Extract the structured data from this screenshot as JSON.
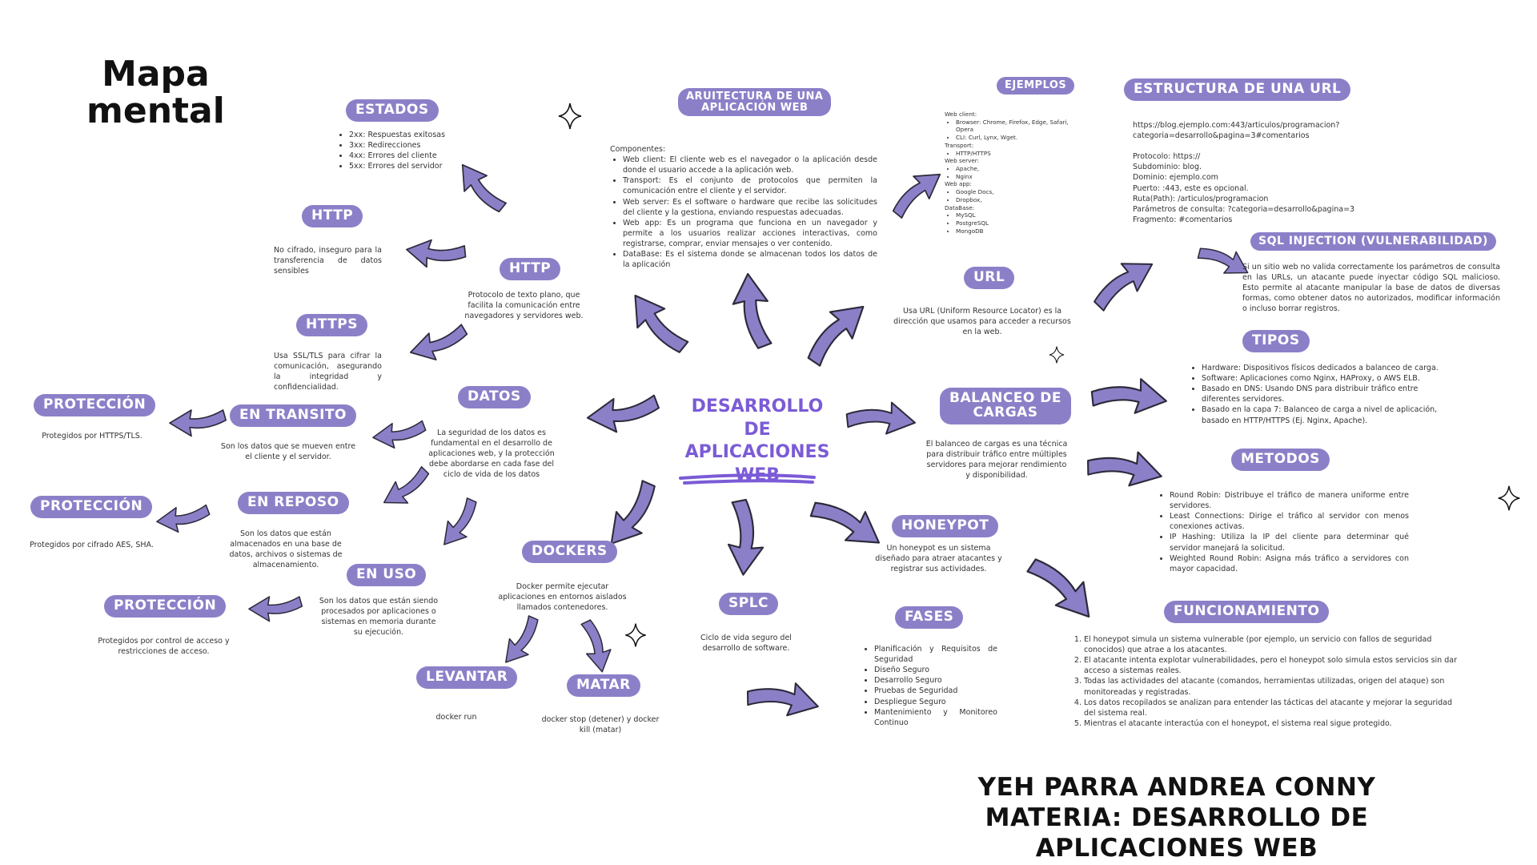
{
  "title": {
    "line1": "Mapa",
    "line2": "mental"
  },
  "center": {
    "line1": "DESARROLLO DE",
    "line2": "APLICACIONES",
    "line3": "WEB"
  },
  "estados": {
    "label": "ESTADOS",
    "items": [
      "2xx: Respuestas exitosas",
      "3xx: Redirecciones",
      "4xx: Errores del cliente",
      "5xx: Errores del servidor"
    ]
  },
  "http_left": {
    "label": "HTTP",
    "text": "No cifrado, inseguro para la transferencia de datos sensibles"
  },
  "http": {
    "label": "HTTP",
    "text": "Protocolo de texto plano, que facilita la comunicación entre navegadores y servidores web."
  },
  "https": {
    "label": "HTTPS",
    "text": "Usa SSL/TLS para cifrar la comunicación, asegurando la integridad y confidencialidad."
  },
  "datos": {
    "label": "DATOS",
    "text": "La seguridad de los datos es fundamental en el desarrollo de aplicaciones web, y la protección debe abordarse en cada fase del ciclo de vida de los datos"
  },
  "en_transito": {
    "label": "EN TRANSITO",
    "text": "Son los datos que se mueven entre el cliente y el servidor."
  },
  "prot1": {
    "label": "PROTECCIÓN",
    "text": "Protegidos por HTTPS/TLS."
  },
  "en_reposo": {
    "label": "EN REPOSO",
    "text": "Son los datos que están almacenados en una base de datos, archivos o sistemas de almacenamiento."
  },
  "prot2": {
    "label": "PROTECCIÓN",
    "text": "Protegidos por cifrado AES, SHA."
  },
  "en_uso": {
    "label": "EN USO",
    "text": "Son los datos que están siendo procesados por aplicaciones o sistemas en memoria durante su ejecución."
  },
  "prot3": {
    "label": "PROTECCIÓN",
    "text": "Protegidos por control de acceso y restricciones de acceso."
  },
  "dockers": {
    "label": "DOCKERS",
    "text": "Docker permite ejecutar aplicaciones en entornos aislados llamados contenedores."
  },
  "levantar": {
    "label": "LEVANTAR",
    "text": "docker run"
  },
  "matar": {
    "label": "MATAR",
    "text": "docker stop (detener) y docker kill (matar)"
  },
  "splc": {
    "label": "SPLC",
    "text": "Ciclo de vida seguro del desarrollo de software."
  },
  "arquitectura": {
    "label_line1": "ARUITECTURA DE UNA",
    "label_line2": "APLICACIÓN WEB",
    "intro": "Componentes:",
    "items": [
      "Web client: El cliente web es el navegador o la aplicación desde donde el usuario accede a la aplicación web.",
      "Transport: Es el conjunto de protocolos que permiten la comunicación entre el cliente y el servidor.",
      "Web server: Es el software o hardware que recibe las solicitudes del cliente y la gestiona, enviando respuestas adecuadas.",
      "Web app: Es un programa que funciona en un navegador y permite a los usuarios realizar acciones interactivas, como registrarse, comprar, enviar mensajes o ver contenido.",
      "DataBase: Es el sistema donde se almacenan todos los datos de la aplicación"
    ]
  },
  "ejemplos": {
    "label": "EJEMPLOS",
    "groups": [
      {
        "title": "Web client:",
        "items": [
          "Browser: Chrome, Firefox, Edge, Safari, Opera",
          "CLI: Curl, Lynx, Wget."
        ]
      },
      {
        "title": "Transport:",
        "items": [
          "HTTP/HTTPS"
        ]
      },
      {
        "title": "Web server:",
        "items": [
          "Apache,",
          "Nginx"
        ]
      },
      {
        "title": "Web app:",
        "items": [
          "Google Docs,",
          "Dropbox,"
        ]
      },
      {
        "title": "DataBase:",
        "items": [
          "MySQL",
          "PostgreSQL",
          "MongoDB"
        ]
      }
    ]
  },
  "url": {
    "label": "URL",
    "text": "Usa URL (Uniform Resource Locator) es la dirección que usamos para acceder a recursos en la web."
  },
  "estructura": {
    "label": "ESTRUCTURA DE UNA URL",
    "example_line1": "https://blog.ejemplo.com:443/articulos/programacion?",
    "example_line2": "categoria=desarrollo&pagina=3#comentarios",
    "parts": [
      "Protocolo: https://",
      "Subdominio: blog.",
      "Dominio: ejemplo.com",
      "Puerto: :443, este es opcional.",
      "Ruta(Path): /articulos/programacion",
      "Parámetros de consulta: ?categoria=desarrollo&pagina=3",
      "Fragmento: #comentarios"
    ]
  },
  "sql": {
    "label": "SQL INJECTION (VULNERABILIDAD)",
    "text": "Si un sitio web no valida correctamente los parámetros de consulta en las URLs, un atacante puede inyectar código SQL malicioso. Esto permite al atacante manipular la base de datos de diversas formas, como obtener datos no autorizados, modificar información o incluso borrar registros."
  },
  "balanceo": {
    "label_line1": "BALANCEO DE",
    "label_line2": "CARGAS",
    "text": "El balanceo de cargas es una técnica para distribuir tráfico entre múltiples servidores para mejorar rendimiento y disponibilidad."
  },
  "tipos": {
    "label": "TIPOS",
    "items": [
      "Hardware: Dispositivos físicos dedicados a balanceo de carga.",
      "Software: Aplicaciones como Nginx, HAProxy, o AWS ELB.",
      "Basado en DNS: Usando DNS para distribuir tráfico entre diferentes servidores.",
      "Basado en la capa 7: Balanceo de carga a nivel de aplicación, basado en HTTP/HTTPS (Ej. Nginx, Apache)."
    ]
  },
  "metodos": {
    "label": "METODOS",
    "items": [
      "Round Robin: Distribuye el tráfico de manera uniforme entre servidores.",
      "Least Connections: Dirige el tráfico al servidor con menos conexiones activas.",
      "IP Hashing: Utiliza la IP del cliente para determinar qué servidor manejará la solicitud.",
      "Weighted Round Robin: Asigna más tráfico a servidores con mayor capacidad."
    ]
  },
  "honeypot": {
    "label": "HONEYPOT",
    "text": "Un honeypot es un sistema diseñado para atraer atacantes y registrar sus actividades."
  },
  "fases": {
    "label": "FASES",
    "items": [
      "Planificación y Requisitos de Seguridad",
      "Diseño Seguro",
      "Desarrollo Seguro",
      "Pruebas de Seguridad",
      "Despliegue Seguro",
      "Mantenimiento y Monitoreo Continuo"
    ]
  },
  "funcionamiento": {
    "label": "FUNCIONAMIENTO",
    "items": [
      "El honeypot simula un sistema vulnerable (por ejemplo, un servicio con fallos de seguridad conocidos) que atrae a los atacantes.",
      "El atacante intenta explotar vulnerabilidades, pero el honeypot solo simula estos servicios sin dar acceso a sistemas reales.",
      "Todas las actividades del atacante (comandos, herramientas utilizadas, origen del ataque) son monitoreadas y registradas.",
      "Los datos recopilados se analizan para entender las tácticas del atacante y mejorar la seguridad del sistema real.",
      "Mientras el atacante interactúa con el honeypot, el sistema real sigue protegido."
    ]
  },
  "footer": {
    "line1": "YEH PARRA ANDREA CONNY",
    "line2": "MATERIA: DESARROLLO DE APLICACIONES WEB"
  },
  "colors": {
    "accent": "#8b80c8",
    "arrow_fill": "#8b80c8",
    "arrow_stroke": "#2b2b3a",
    "center_text": "#7b5bd6",
    "underline": "#7b5bd6"
  },
  "icons": [
    "sparkle-icon",
    "arrow-icon"
  ]
}
